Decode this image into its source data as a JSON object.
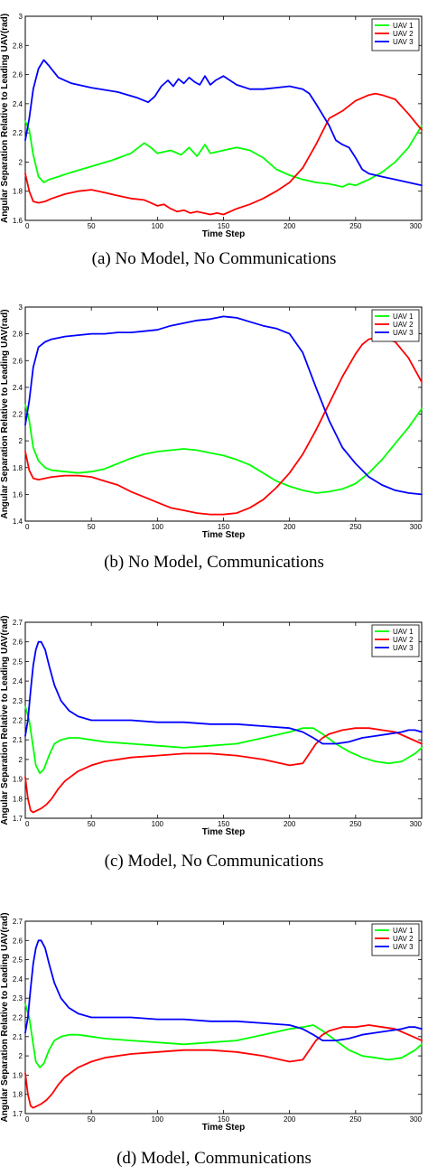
{
  "chart_data": [
    {
      "type": "line",
      "caption": "(a) No Model, No Communications",
      "xlabel": "Time Step",
      "ylabel": "Angular Separation Relative to Leading UAV(rad)",
      "xlim": [
        0,
        300
      ],
      "ylim": [
        1.6,
        3.0
      ],
      "xticks": [
        "0",
        "50",
        "100",
        "150",
        "200",
        "250",
        "300"
      ],
      "yticks": [
        "1.6",
        "1.8",
        "2",
        "2.2",
        "2.4",
        "2.6",
        "2.8",
        "3"
      ],
      "legend_position": "top-right",
      "series": [
        {
          "name": "UAV 1",
          "color": "#00ff00",
          "x": [
            0,
            3,
            6,
            10,
            14,
            18,
            25,
            35,
            50,
            65,
            80,
            90,
            95,
            100,
            110,
            118,
            124,
            130,
            136,
            140,
            150,
            160,
            170,
            180,
            190,
            200,
            210,
            220,
            230,
            235,
            240,
            245,
            250,
            255,
            260,
            270,
            280,
            290,
            300
          ],
          "y": [
            2.28,
            2.22,
            2.05,
            1.9,
            1.86,
            1.88,
            1.9,
            1.93,
            1.97,
            2.01,
            2.06,
            2.13,
            2.1,
            2.06,
            2.08,
            2.05,
            2.1,
            2.04,
            2.12,
            2.06,
            2.08,
            2.1,
            2.08,
            2.03,
            1.95,
            1.91,
            1.88,
            1.86,
            1.85,
            1.84,
            1.83,
            1.85,
            1.84,
            1.86,
            1.88,
            1.93,
            2.0,
            2.1,
            2.25
          ]
        },
        {
          "name": "UAV 2",
          "color": "#ff0000",
          "x": [
            0,
            3,
            6,
            10,
            15,
            20,
            30,
            40,
            50,
            60,
            70,
            80,
            90,
            95,
            100,
            105,
            110,
            115,
            120,
            125,
            130,
            135,
            140,
            145,
            150,
            160,
            170,
            180,
            190,
            200,
            210,
            220,
            230,
            240,
            250,
            260,
            265,
            270,
            280,
            290,
            300
          ],
          "y": [
            1.92,
            1.8,
            1.73,
            1.72,
            1.73,
            1.75,
            1.78,
            1.8,
            1.81,
            1.79,
            1.77,
            1.75,
            1.74,
            1.72,
            1.7,
            1.71,
            1.68,
            1.66,
            1.67,
            1.65,
            1.66,
            1.65,
            1.64,
            1.65,
            1.64,
            1.68,
            1.71,
            1.75,
            1.8,
            1.86,
            1.96,
            2.12,
            2.3,
            2.35,
            2.42,
            2.46,
            2.47,
            2.46,
            2.43,
            2.33,
            2.22
          ]
        },
        {
          "name": "UAV 3",
          "color": "#0000ff",
          "x": [
            0,
            3,
            6,
            10,
            14,
            18,
            25,
            35,
            50,
            70,
            85,
            93,
            98,
            103,
            108,
            112,
            116,
            120,
            124,
            128,
            132,
            136,
            140,
            144,
            150,
            160,
            170,
            180,
            190,
            200,
            210,
            215,
            220,
            230,
            235,
            240,
            245,
            250,
            255,
            260,
            270,
            280,
            290,
            300
          ],
          "y": [
            2.15,
            2.3,
            2.5,
            2.64,
            2.7,
            2.66,
            2.58,
            2.54,
            2.51,
            2.48,
            2.44,
            2.41,
            2.45,
            2.52,
            2.56,
            2.52,
            2.57,
            2.54,
            2.58,
            2.55,
            2.53,
            2.59,
            2.53,
            2.56,
            2.59,
            2.53,
            2.5,
            2.5,
            2.51,
            2.52,
            2.5,
            2.47,
            2.4,
            2.25,
            2.15,
            2.12,
            2.1,
            2.03,
            1.95,
            1.92,
            1.9,
            1.88,
            1.86,
            1.84
          ]
        }
      ]
    },
    {
      "type": "line",
      "caption": "(b) No Model, Communications",
      "xlabel": "Time Step",
      "ylabel": "Angular Separation Relative to Leading UAV(rad)",
      "xlim": [
        0,
        300
      ],
      "ylim": [
        1.4,
        3.0
      ],
      "xticks": [
        "0",
        "50",
        "100",
        "150",
        "200",
        "250",
        "300"
      ],
      "yticks": [
        "1.4",
        "1.6",
        "1.8",
        "2",
        "2.2",
        "2.4",
        "2.6",
        "2.8",
        "3"
      ],
      "legend_position": "top-right",
      "series": [
        {
          "name": "UAV 1",
          "color": "#00ff00",
          "x": [
            0,
            3,
            6,
            10,
            15,
            20,
            30,
            40,
            50,
            60,
            70,
            80,
            90,
            100,
            110,
            120,
            130,
            140,
            150,
            160,
            170,
            180,
            190,
            200,
            210,
            220,
            230,
            240,
            250,
            260,
            270,
            280,
            290,
            300
          ],
          "y": [
            2.27,
            2.15,
            1.95,
            1.85,
            1.8,
            1.78,
            1.77,
            1.76,
            1.77,
            1.79,
            1.83,
            1.87,
            1.9,
            1.92,
            1.93,
            1.94,
            1.93,
            1.91,
            1.89,
            1.86,
            1.82,
            1.76,
            1.7,
            1.66,
            1.63,
            1.61,
            1.62,
            1.64,
            1.68,
            1.76,
            1.86,
            1.98,
            2.1,
            2.24
          ]
        },
        {
          "name": "UAV 2",
          "color": "#ff0000",
          "x": [
            0,
            3,
            6,
            10,
            15,
            20,
            30,
            40,
            50,
            60,
            70,
            80,
            90,
            100,
            110,
            120,
            130,
            140,
            150,
            160,
            170,
            180,
            190,
            200,
            210,
            220,
            230,
            240,
            250,
            255,
            260,
            265,
            270,
            280,
            290,
            300
          ],
          "y": [
            1.92,
            1.78,
            1.72,
            1.71,
            1.72,
            1.73,
            1.74,
            1.74,
            1.73,
            1.7,
            1.67,
            1.62,
            1.58,
            1.54,
            1.5,
            1.48,
            1.46,
            1.45,
            1.45,
            1.46,
            1.5,
            1.56,
            1.65,
            1.76,
            1.9,
            2.08,
            2.28,
            2.48,
            2.65,
            2.72,
            2.76,
            2.77,
            2.77,
            2.74,
            2.62,
            2.44
          ]
        },
        {
          "name": "UAV 3",
          "color": "#0000ff",
          "x": [
            0,
            3,
            6,
            10,
            15,
            20,
            30,
            40,
            50,
            60,
            70,
            80,
            90,
            100,
            110,
            120,
            130,
            140,
            150,
            160,
            170,
            180,
            190,
            200,
            210,
            220,
            230,
            240,
            250,
            260,
            270,
            280,
            290,
            300
          ],
          "y": [
            2.12,
            2.3,
            2.55,
            2.7,
            2.74,
            2.76,
            2.78,
            2.79,
            2.8,
            2.8,
            2.81,
            2.81,
            2.82,
            2.83,
            2.86,
            2.88,
            2.9,
            2.91,
            2.93,
            2.92,
            2.89,
            2.86,
            2.84,
            2.8,
            2.66,
            2.4,
            2.15,
            1.95,
            1.83,
            1.73,
            1.67,
            1.63,
            1.61,
            1.6
          ]
        }
      ]
    },
    {
      "type": "line",
      "caption": "(c) Model, No Communications",
      "xlabel": "Time Step",
      "ylabel": "Angular Separation Relative to Leading UAV(rad)",
      "xlim": [
        0,
        300
      ],
      "ylim": [
        1.7,
        2.7
      ],
      "xticks": [
        "0",
        "50",
        "100",
        "150",
        "200",
        "250",
        "300"
      ],
      "yticks": [
        "1.7",
        "1.8",
        "1.9",
        "2",
        "2.1",
        "2.2",
        "2.3",
        "2.4",
        "2.5",
        "2.6",
        "2.7"
      ],
      "legend_position": "top-right",
      "series": [
        {
          "name": "UAV 1",
          "color": "#00ff00",
          "x": [
            0,
            3,
            6,
            8,
            11,
            14,
            18,
            22,
            27,
            33,
            40,
            50,
            60,
            80,
            100,
            120,
            140,
            160,
            180,
            200,
            210,
            218,
            225,
            235,
            245,
            255,
            265,
            275,
            285,
            295,
            300
          ],
          "y": [
            2.27,
            2.2,
            2.06,
            1.97,
            1.93,
            1.95,
            2.02,
            2.08,
            2.1,
            2.11,
            2.11,
            2.1,
            2.09,
            2.08,
            2.07,
            2.06,
            2.07,
            2.08,
            2.11,
            2.14,
            2.16,
            2.16,
            2.13,
            2.08,
            2.04,
            2.01,
            1.99,
            1.98,
            1.99,
            2.03,
            2.06
          ]
        },
        {
          "name": "UAV 2",
          "color": "#ff0000",
          "x": [
            0,
            2,
            4,
            6,
            9,
            12,
            16,
            20,
            25,
            30,
            40,
            50,
            60,
            80,
            100,
            120,
            140,
            160,
            180,
            200,
            210,
            215,
            220,
            225,
            230,
            240,
            250,
            260,
            270,
            280,
            290,
            300
          ],
          "y": [
            1.91,
            1.8,
            1.74,
            1.73,
            1.74,
            1.75,
            1.77,
            1.8,
            1.85,
            1.89,
            1.94,
            1.97,
            1.99,
            2.01,
            2.02,
            2.03,
            2.03,
            2.02,
            2.0,
            1.97,
            1.98,
            2.03,
            2.08,
            2.11,
            2.13,
            2.15,
            2.16,
            2.16,
            2.15,
            2.14,
            2.11,
            2.08
          ]
        },
        {
          "name": "UAV 3",
          "color": "#0000ff",
          "x": [
            0,
            2,
            4,
            6,
            8,
            10,
            12,
            15,
            18,
            22,
            27,
            33,
            40,
            50,
            60,
            80,
            100,
            120,
            140,
            160,
            180,
            200,
            210,
            218,
            225,
            235,
            245,
            255,
            265,
            275,
            285,
            290,
            295,
            300
          ],
          "y": [
            2.12,
            2.2,
            2.35,
            2.48,
            2.56,
            2.6,
            2.6,
            2.56,
            2.48,
            2.38,
            2.3,
            2.25,
            2.22,
            2.2,
            2.2,
            2.2,
            2.19,
            2.19,
            2.18,
            2.18,
            2.17,
            2.16,
            2.14,
            2.11,
            2.08,
            2.08,
            2.09,
            2.11,
            2.12,
            2.13,
            2.14,
            2.15,
            2.15,
            2.14
          ]
        }
      ]
    },
    {
      "type": "line",
      "caption": "(d) Model, Communications",
      "xlabel": "Time Step",
      "ylabel": "Angular Separation Relative to Leading UAV(rad)",
      "xlim": [
        0,
        300
      ],
      "ylim": [
        1.7,
        2.7
      ],
      "xticks": [
        "0",
        "50",
        "100",
        "150",
        "200",
        "250",
        "300"
      ],
      "yticks": [
        "1.7",
        "1.8",
        "1.9",
        "2",
        "2.1",
        "2.2",
        "2.3",
        "2.4",
        "2.5",
        "2.6",
        "2.7"
      ],
      "legend_position": "top-right",
      "series": [
        {
          "name": "UAV 1",
          "color": "#00ff00",
          "x": [
            0,
            3,
            6,
            8,
            11,
            14,
            18,
            22,
            27,
            33,
            40,
            50,
            60,
            80,
            100,
            120,
            140,
            160,
            180,
            200,
            210,
            218,
            225,
            235,
            245,
            255,
            265,
            275,
            285,
            295,
            300
          ],
          "y": [
            2.27,
            2.2,
            2.06,
            1.97,
            1.94,
            1.96,
            2.03,
            2.08,
            2.1,
            2.11,
            2.11,
            2.1,
            2.09,
            2.08,
            2.07,
            2.06,
            2.07,
            2.08,
            2.11,
            2.14,
            2.15,
            2.16,
            2.13,
            2.08,
            2.03,
            2.0,
            1.99,
            1.98,
            1.99,
            2.03,
            2.06
          ]
        },
        {
          "name": "UAV 2",
          "color": "#ff0000",
          "x": [
            0,
            2,
            4,
            6,
            9,
            12,
            16,
            20,
            25,
            30,
            40,
            50,
            60,
            80,
            100,
            120,
            140,
            160,
            180,
            200,
            210,
            215,
            220,
            225,
            230,
            240,
            250,
            260,
            270,
            280,
            290,
            300
          ],
          "y": [
            1.91,
            1.8,
            1.74,
            1.73,
            1.74,
            1.75,
            1.77,
            1.8,
            1.85,
            1.89,
            1.94,
            1.97,
            1.99,
            2.01,
            2.02,
            2.03,
            2.03,
            2.02,
            2.0,
            1.97,
            1.98,
            2.03,
            2.08,
            2.11,
            2.13,
            2.15,
            2.15,
            2.16,
            2.15,
            2.14,
            2.11,
            2.08
          ]
        },
        {
          "name": "UAV 3",
          "color": "#0000ff",
          "x": [
            0,
            2,
            4,
            6,
            8,
            10,
            12,
            15,
            18,
            22,
            27,
            33,
            40,
            50,
            60,
            80,
            100,
            120,
            140,
            160,
            180,
            200,
            210,
            218,
            225,
            235,
            245,
            255,
            265,
            275,
            285,
            290,
            295,
            300
          ],
          "y": [
            2.12,
            2.2,
            2.35,
            2.48,
            2.56,
            2.6,
            2.6,
            2.56,
            2.48,
            2.38,
            2.3,
            2.25,
            2.22,
            2.2,
            2.2,
            2.2,
            2.19,
            2.19,
            2.18,
            2.18,
            2.17,
            2.16,
            2.14,
            2.11,
            2.08,
            2.08,
            2.09,
            2.11,
            2.12,
            2.13,
            2.14,
            2.15,
            2.15,
            2.14
          ]
        }
      ]
    }
  ]
}
